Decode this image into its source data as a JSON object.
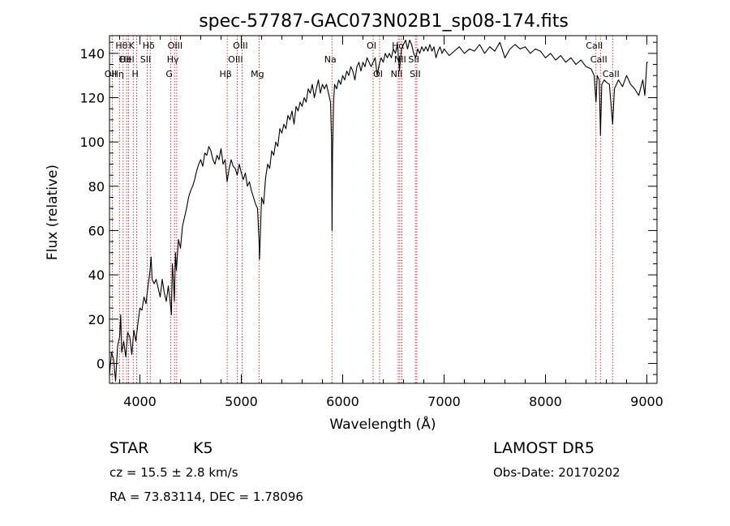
{
  "chart_data": {
    "type": "line",
    "title": "spec-57787-GAC073N02B1_sp08-174.fits",
    "xlabel": "Wavelength (Å)",
    "ylabel": "Flux (relative)",
    "xlim": [
      3700,
      9100
    ],
    "ylim": [
      -9,
      148
    ],
    "xticks": [
      4000,
      5000,
      6000,
      7000,
      8000,
      9000
    ],
    "yticks": [
      0,
      20,
      40,
      60,
      80,
      100,
      120,
      140
    ],
    "line_color": "#000000",
    "marker_color": "#cc0000",
    "series": [
      {
        "points": [
          [
            3700,
            -5
          ],
          [
            3720,
            5
          ],
          [
            3740,
            2
          ],
          [
            3760,
            -8
          ],
          [
            3780,
            8
          ],
          [
            3800,
            12
          ],
          [
            3810,
            22
          ],
          [
            3820,
            5
          ],
          [
            3840,
            10
          ],
          [
            3860,
            3
          ],
          [
            3880,
            14
          ],
          [
            3900,
            12
          ],
          [
            3920,
            4
          ],
          [
            3940,
            15
          ],
          [
            3960,
            10
          ],
          [
            3980,
            18
          ],
          [
            4000,
            25
          ],
          [
            4020,
            24
          ],
          [
            4040,
            30
          ],
          [
            4060,
            27
          ],
          [
            4080,
            35
          ],
          [
            4100,
            42
          ],
          [
            4110,
            48
          ],
          [
            4120,
            38
          ],
          [
            4140,
            36
          ],
          [
            4160,
            38
          ],
          [
            4180,
            34
          ],
          [
            4200,
            30
          ],
          [
            4220,
            38
          ],
          [
            4240,
            32
          ],
          [
            4260,
            28
          ],
          [
            4280,
            35
          ],
          [
            4300,
            27
          ],
          [
            4310,
            22
          ],
          [
            4320,
            45
          ],
          [
            4330,
            38
          ],
          [
            4340,
            28
          ],
          [
            4350,
            50
          ],
          [
            4360,
            42
          ],
          [
            4380,
            56
          ],
          [
            4400,
            52
          ],
          [
            4420,
            62
          ],
          [
            4440,
            66
          ],
          [
            4460,
            70
          ],
          [
            4480,
            75
          ],
          [
            4500,
            78
          ],
          [
            4520,
            80
          ],
          [
            4540,
            83
          ],
          [
            4560,
            87
          ],
          [
            4580,
            90
          ],
          [
            4600,
            92
          ],
          [
            4620,
            89
          ],
          [
            4640,
            95
          ],
          [
            4660,
            94
          ],
          [
            4680,
            98
          ],
          [
            4700,
            96
          ],
          [
            4720,
            92
          ],
          [
            4740,
            90
          ],
          [
            4760,
            94
          ],
          [
            4780,
            92
          ],
          [
            4800,
            97
          ],
          [
            4820,
            90
          ],
          [
            4840,
            92
          ],
          [
            4860,
            82
          ],
          [
            4880,
            88
          ],
          [
            4900,
            92
          ],
          [
            4920,
            89
          ],
          [
            4940,
            88
          ],
          [
            4960,
            85
          ],
          [
            4980,
            90
          ],
          [
            5000,
            86
          ],
          [
            5020,
            83
          ],
          [
            5040,
            86
          ],
          [
            5060,
            80
          ],
          [
            5080,
            82
          ],
          [
            5100,
            78
          ],
          [
            5120,
            75
          ],
          [
            5140,
            72
          ],
          [
            5160,
            70
          ],
          [
            5175,
            55
          ],
          [
            5180,
            47
          ],
          [
            5190,
            62
          ],
          [
            5200,
            75
          ],
          [
            5220,
            72
          ],
          [
            5240,
            84
          ],
          [
            5260,
            90
          ],
          [
            5280,
            88
          ],
          [
            5300,
            96
          ],
          [
            5320,
            94
          ],
          [
            5340,
            100
          ],
          [
            5360,
            98
          ],
          [
            5380,
            106
          ],
          [
            5400,
            104
          ],
          [
            5420,
            108
          ],
          [
            5440,
            106
          ],
          [
            5460,
            112
          ],
          [
            5480,
            110
          ],
          [
            5500,
            114
          ],
          [
            5520,
            108
          ],
          [
            5540,
            116
          ],
          [
            5560,
            114
          ],
          [
            5580,
            118
          ],
          [
            5600,
            116
          ],
          [
            5620,
            120
          ],
          [
            5640,
            118
          ],
          [
            5660,
            124
          ],
          [
            5680,
            122
          ],
          [
            5700,
            126
          ],
          [
            5720,
            120
          ],
          [
            5740,
            124
          ],
          [
            5760,
            128
          ],
          [
            5780,
            122
          ],
          [
            5800,
            126
          ],
          [
            5820,
            124
          ],
          [
            5840,
            126
          ],
          [
            5860,
            122
          ],
          [
            5880,
            118
          ],
          [
            5890,
            100
          ],
          [
            5895,
            60
          ],
          [
            5900,
            95
          ],
          [
            5910,
            118
          ],
          [
            5920,
            126
          ],
          [
            5940,
            124
          ],
          [
            5960,
            128
          ],
          [
            5980,
            126
          ],
          [
            6000,
            130
          ],
          [
            6020,
            128
          ],
          [
            6040,
            132
          ],
          [
            6060,
            130
          ],
          [
            6080,
            134
          ],
          [
            6100,
            132
          ],
          [
            6120,
            128
          ],
          [
            6140,
            134
          ],
          [
            6160,
            136
          ],
          [
            6180,
            132
          ],
          [
            6200,
            136
          ],
          [
            6220,
            134
          ],
          [
            6240,
            138
          ],
          [
            6260,
            136
          ],
          [
            6280,
            134
          ],
          [
            6300,
            136
          ],
          [
            6320,
            138
          ],
          [
            6340,
            130
          ],
          [
            6360,
            135
          ],
          [
            6380,
            138
          ],
          [
            6400,
            136
          ],
          [
            6420,
            140
          ],
          [
            6440,
            138
          ],
          [
            6460,
            140
          ],
          [
            6480,
            138
          ],
          [
            6500,
            142
          ],
          [
            6520,
            140
          ],
          [
            6540,
            144
          ],
          [
            6560,
            132
          ],
          [
            6580,
            142
          ],
          [
            6600,
            144
          ],
          [
            6620,
            146
          ],
          [
            6640,
            142
          ],
          [
            6660,
            146
          ],
          [
            6680,
            144
          ],
          [
            6700,
            140
          ],
          [
            6720,
            138
          ],
          [
            6740,
            142
          ],
          [
            6760,
            140
          ],
          [
            6780,
            143
          ],
          [
            6800,
            141
          ],
          [
            6820,
            143
          ],
          [
            6840,
            141
          ],
          [
            6860,
            144
          ],
          [
            6880,
            141
          ],
          [
            6900,
            143
          ],
          [
            6920,
            138
          ],
          [
            6940,
            141
          ],
          [
            6960,
            143
          ],
          [
            6980,
            140
          ],
          [
            7000,
            142
          ],
          [
            7050,
            139
          ],
          [
            7100,
            141
          ],
          [
            7150,
            143
          ],
          [
            7200,
            140
          ],
          [
            7250,
            142
          ],
          [
            7300,
            141
          ],
          [
            7350,
            144
          ],
          [
            7400,
            140
          ],
          [
            7450,
            143
          ],
          [
            7500,
            141
          ],
          [
            7550,
            145
          ],
          [
            7600,
            138
          ],
          [
            7650,
            142
          ],
          [
            7700,
            144
          ],
          [
            7750,
            142
          ],
          [
            7800,
            143
          ],
          [
            7850,
            140
          ],
          [
            7900,
            142
          ],
          [
            7950,
            141
          ],
          [
            8000,
            138
          ],
          [
            8050,
            140
          ],
          [
            8100,
            137
          ],
          [
            8150,
            139
          ],
          [
            8200,
            136
          ],
          [
            8250,
            138
          ],
          [
            8300,
            135
          ],
          [
            8350,
            137
          ],
          [
            8400,
            134
          ],
          [
            8450,
            133
          ],
          [
            8480,
            130
          ],
          [
            8498,
            118
          ],
          [
            8510,
            130
          ],
          [
            8530,
            128
          ],
          [
            8542,
            103
          ],
          [
            8555,
            126
          ],
          [
            8580,
            128
          ],
          [
            8600,
            127
          ],
          [
            8630,
            126
          ],
          [
            8662,
            108
          ],
          [
            8680,
            124
          ],
          [
            8720,
            128
          ],
          [
            8760,
            125
          ],
          [
            8800,
            130
          ],
          [
            8840,
            126
          ],
          [
            8880,
            124
          ],
          [
            8920,
            121
          ],
          [
            8960,
            128
          ],
          [
            8980,
            121
          ],
          [
            9000,
            136
          ],
          [
            9010,
            136
          ]
        ]
      }
    ],
    "lines": [
      {
        "x": 3727,
        "label": "OII",
        "row": 3
      },
      {
        "x": 3798,
        "label": "Hη",
        "row": 3
      },
      {
        "x": 3835,
        "label": "Hθ",
        "row": 1
      },
      {
        "x": 3869,
        "label": "OII",
        "row": 2
      },
      {
        "x": 3889,
        "label": "HeI",
        "row": 2
      },
      {
        "x": 3934,
        "label": "K",
        "row": 1
      },
      {
        "x": 3969,
        "label": "H",
        "row": 3
      },
      {
        "x": 4072,
        "label": "SII",
        "row": 2
      },
      {
        "x": 4102,
        "label": "Hδ",
        "row": 1
      },
      {
        "x": 4305,
        "label": "G",
        "row": 3
      },
      {
        "x": 4341,
        "label": "Hγ",
        "row": 2
      },
      {
        "x": 4363,
        "label": "OIII",
        "row": 1
      },
      {
        "x": 4861,
        "label": "Hβ",
        "row": 3
      },
      {
        "x": 4959,
        "label": "OIII",
        "row": 2
      },
      {
        "x": 5007,
        "label": "OIII",
        "row": 1
      },
      {
        "x": 5175,
        "label": "Mg",
        "row": 3
      },
      {
        "x": 5894,
        "label": "Na",
        "row": 2
      },
      {
        "x": 6300,
        "label": "OI",
        "row": 1
      },
      {
        "x": 6364,
        "label": "OI",
        "row": 3
      },
      {
        "x": 6548,
        "label": "NII",
        "row": 3
      },
      {
        "x": 6563,
        "label": "Hα",
        "row": 1
      },
      {
        "x": 6583,
        "label": "NII",
        "row": 2
      },
      {
        "x": 6717,
        "label": "SII",
        "row": 2
      },
      {
        "x": 6731,
        "label": "SII",
        "row": 3
      },
      {
        "x": 8498,
        "label": "CaII",
        "row": 1
      },
      {
        "x": 8542,
        "label": "CaII",
        "row": 2
      },
      {
        "x": 8662,
        "label": "CaII",
        "row": 3
      }
    ]
  },
  "info": {
    "class": "STAR",
    "subclass": "K5",
    "survey": "LAMOST DR5",
    "cz": "cz = 15.5 ± 2.8 km/s",
    "obs_date": "Obs-Date: 20170202",
    "radec": "RA =  73.83114, DEC =   1.78096"
  }
}
